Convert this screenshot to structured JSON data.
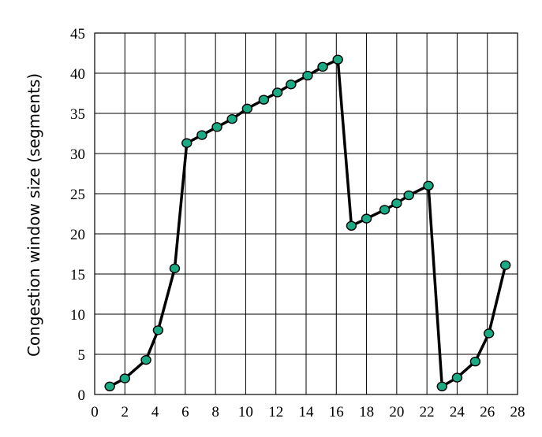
{
  "chart_data": {
    "type": "line",
    "title": "",
    "xlabel": "",
    "ylabel": "Congestion window size (segments)",
    "xlim": [
      0,
      28
    ],
    "ylim": [
      0,
      45
    ],
    "xticks": [
      0,
      2,
      4,
      6,
      8,
      10,
      12,
      14,
      16,
      18,
      20,
      22,
      24,
      26,
      28
    ],
    "yticks": [
      0,
      5,
      10,
      15,
      20,
      25,
      30,
      35,
      40,
      45
    ],
    "grid": true,
    "series": [
      {
        "x": [
          1,
          2,
          3.4,
          4.2,
          5.3,
          6.1,
          7.1,
          8.1,
          9.1,
          10.1,
          11.2,
          12.1,
          13,
          14.1,
          15.1,
          16.1,
          17,
          18,
          19.2,
          20,
          20.8,
          22.1,
          23,
          24,
          25.2,
          26.1,
          27.2
        ],
        "y": [
          1,
          2,
          4.3,
          8,
          15.7,
          31.3,
          32.3,
          33.3,
          34.3,
          35.6,
          36.7,
          37.6,
          38.6,
          39.7,
          40.8,
          41.7,
          21,
          21.9,
          23,
          23.8,
          24.8,
          26,
          1,
          2.1,
          4.1,
          7.6,
          16.1
        ],
        "color": "#1aaa84"
      }
    ]
  }
}
